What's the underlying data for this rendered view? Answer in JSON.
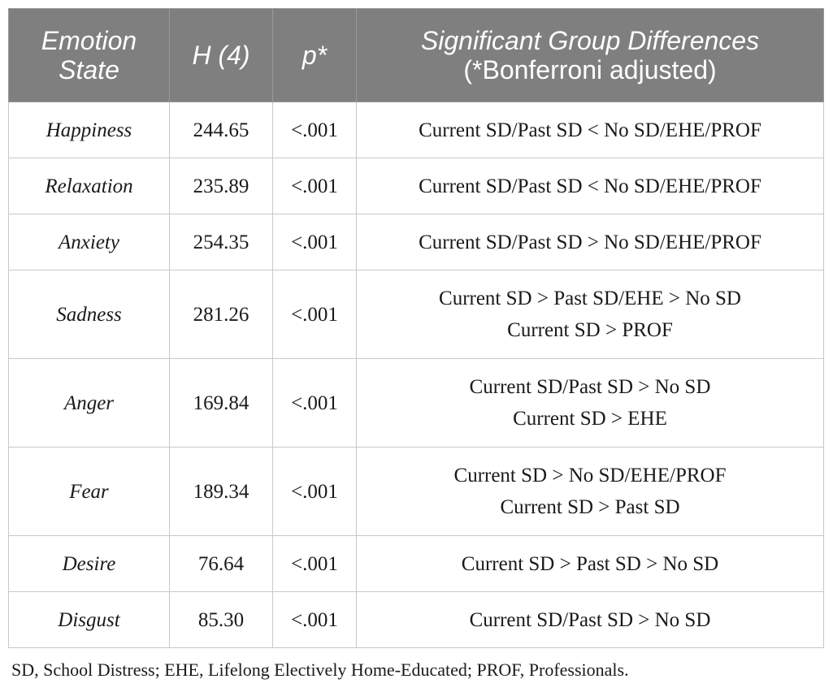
{
  "header": {
    "emotion_state": "Emotion State",
    "h": "H (4)",
    "p": "p*",
    "sig_line1": "Significant Group Differences",
    "sig_line2": "(*Bonferroni adjusted)"
  },
  "rows": [
    {
      "emotion": "Happiness",
      "h": "244.65",
      "p": "<.001",
      "diffs": [
        "Current SD/Past SD < No SD/EHE/PROF"
      ]
    },
    {
      "emotion": "Relaxation",
      "h": "235.89",
      "p": "<.001",
      "diffs": [
        "Current SD/Past SD < No SD/EHE/PROF"
      ]
    },
    {
      "emotion": "Anxiety",
      "h": "254.35",
      "p": "<.001",
      "diffs": [
        "Current SD/Past SD > No SD/EHE/PROF"
      ]
    },
    {
      "emotion": "Sadness",
      "h": "281.26",
      "p": "<.001",
      "diffs": [
        "Current SD > Past SD/EHE > No SD",
        "Current SD > PROF"
      ]
    },
    {
      "emotion": "Anger",
      "h": "169.84",
      "p": "<.001",
      "diffs": [
        "Current SD/Past SD > No SD",
        "Current SD > EHE"
      ]
    },
    {
      "emotion": "Fear",
      "h": "189.34",
      "p": "<.001",
      "diffs": [
        "Current SD > No SD/EHE/PROF",
        "Current SD > Past SD"
      ]
    },
    {
      "emotion": "Desire",
      "h": "76.64",
      "p": "<.001",
      "diffs": [
        "Current SD > Past SD > No SD"
      ]
    },
    {
      "emotion": "Disgust",
      "h": "85.30",
      "p": "<.001",
      "diffs": [
        "Current SD/Past SD > No SD"
      ]
    }
  ],
  "footnote": "SD, School Distress; EHE, Lifelong Electively Home-Educated; PROF, Professionals."
}
